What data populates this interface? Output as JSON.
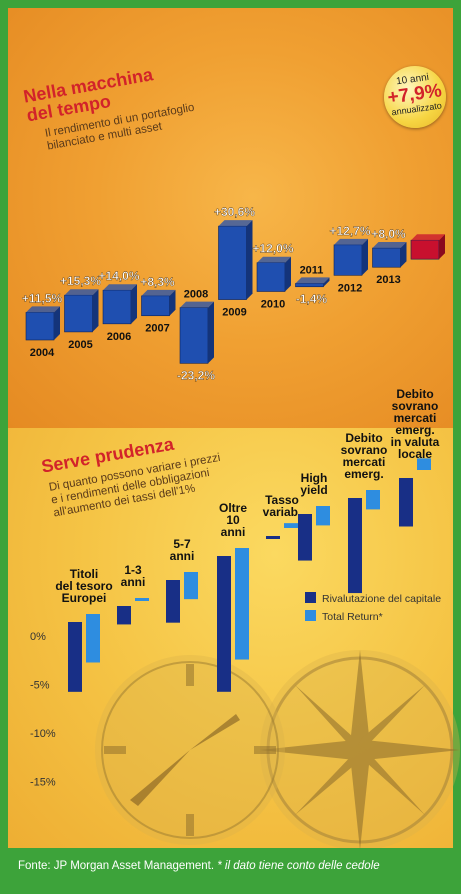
{
  "top": {
    "title": "Nella macchina del tempo",
    "title_lines": [
      "Nella macchina",
      "del tempo"
    ],
    "subtitle": "Il rendimento di un portafoglio bilanciato e multi asset",
    "subtitle_lines": [
      "Il rendimento di un portafoglio",
      "bilanciato e multi asset"
    ],
    "badge": {
      "line1": "10 anni",
      "value": "+7,9%",
      "line3": "annualizzato"
    }
  },
  "bottom": {
    "title": "Serve prudenza",
    "subtitle": "Di quanto possono variare i prezzi e i rendimenti delle obbligazioni all'aumento dei tassi dell'1%",
    "subtitle_lines": [
      "Di quanto possono variare i prezzi",
      "e i rendimenti delle obbligazioni",
      "all'aumento dei tassi dell'1%"
    ],
    "legend": [
      "Rivalutazione del capitale",
      "Total Return*"
    ]
  },
  "footer": {
    "source": "Fonte: JP Morgan Asset Management.",
    "note": "* il dato tiene conto delle cedole"
  },
  "colors": {
    "bar_blue": "#1f4fb0",
    "bar_blue_side": "#14347a",
    "bar_red": "#c8102e",
    "light_blue": "#2e8de0",
    "dark_blue": "#182f86",
    "green_frame": "#3da33a",
    "title_red": "#d2232a"
  },
  "chart_data": [
    {
      "type": "bar",
      "title": "Nella macchina del tempo",
      "categories": [
        "2004",
        "2005",
        "2006",
        "2007",
        "2008",
        "2009",
        "2010",
        "2011",
        "2012",
        "2013"
      ],
      "values": [
        11.5,
        15.3,
        14.0,
        8.3,
        -23.2,
        30.6,
        12.0,
        -1.4,
        12.7,
        8.0
      ],
      "labels": [
        "+11,5%",
        "+15,3%",
        "+14,0%",
        "+8,3%",
        "-23,2%",
        "+30,6%",
        "+12,0%",
        "-1,4%",
        "+12,7%",
        "+8,0%"
      ],
      "highlight": {
        "label": "10 anni",
        "value": 7.9,
        "text": "+7,9%",
        "note": "annualizzato"
      }
    },
    {
      "type": "bar",
      "title": "Serve prudenza",
      "categories": [
        "Titoli del tesoro Europei",
        "1-3 anni",
        "5-7 anni",
        "Oltre 10 anni",
        "Tasso variab.",
        "High yield",
        "Debito sovrano mercati emerg.",
        "Debito sovrano mercati emerg. in valuta locale"
      ],
      "category_lines": [
        [
          "Titoli",
          "del tesoro",
          "Europei"
        ],
        [
          "1-3",
          "anni"
        ],
        [
          "5-7",
          "anni"
        ],
        [
          "Oltre",
          "10",
          "anni"
        ],
        [
          "Tasso",
          "variab."
        ],
        [
          "High",
          "yield"
        ],
        [
          "Debito",
          "sovrano",
          "mercati",
          "emerg."
        ],
        [
          "Debito",
          "sovrano",
          "mercati",
          "emerg.",
          "in valuta",
          "locale"
        ]
      ],
      "series": [
        {
          "name": "Rivalutazione del capitale",
          "values": [
            -7.2,
            -1.9,
            -4.4,
            -14.0,
            -0.2,
            -4.8,
            -9.8,
            -5.0
          ]
        },
        {
          "name": "Total Return*",
          "values": [
            -5.0,
            -0.3,
            -2.8,
            -11.5,
            0.5,
            -2.0,
            -2.0,
            1.2
          ]
        }
      ],
      "yticks": [
        0,
        -5,
        -10,
        -15
      ],
      "ytick_labels": [
        "0%",
        "-5%",
        "-10%",
        "-15%"
      ],
      "ylim": [
        -17,
        2
      ]
    }
  ]
}
